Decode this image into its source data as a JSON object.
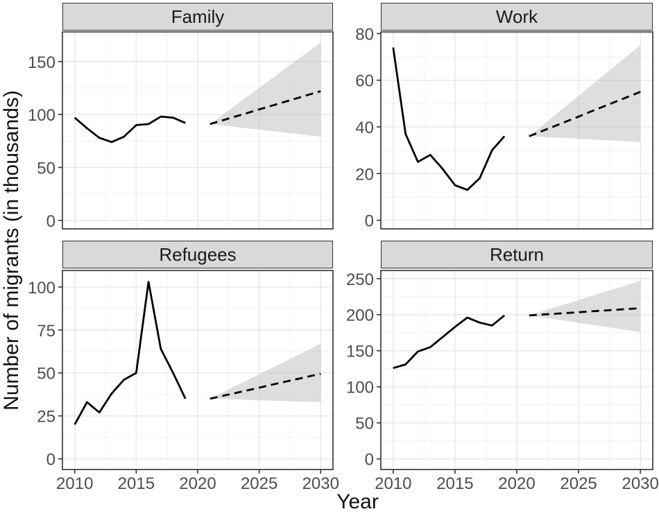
{
  "chart_data": {
    "type": "line",
    "title": "",
    "xlabel": "Year",
    "ylabel": "Number of migrants (in thousands)",
    "x_ticks": [
      2010,
      2015,
      2020,
      2025,
      2030
    ],
    "x_minor": [
      2012.5,
      2017.5,
      2022.5,
      2027.5
    ],
    "x_range": [
      2009,
      2031
    ],
    "years_observed": [
      2010,
      2011,
      2012,
      2013,
      2014,
      2015,
      2016,
      2017,
      2018,
      2019
    ],
    "years_forecast": [
      2021,
      2022,
      2023,
      2024,
      2025,
      2026,
      2027,
      2028,
      2029,
      2030
    ],
    "grid": true,
    "legend": "none",
    "facets": [
      {
        "title": "Family",
        "y_ticks": [
          0,
          50,
          100,
          150
        ],
        "y_minor": [
          25,
          75,
          125,
          175
        ],
        "y_range": [
          -8,
          178
        ],
        "observed": [
          97,
          87,
          78,
          74,
          79,
          90,
          91,
          98,
          97,
          92
        ],
        "forecast": [
          91,
          94.4,
          97.9,
          101.3,
          104.8,
          108.2,
          111.7,
          115.1,
          118.6,
          122
        ],
        "band_upper": [
          91,
          99.6,
          108.1,
          116.7,
          125.2,
          133.8,
          142.3,
          150.9,
          159.4,
          168
        ],
        "band_lower": [
          91,
          89.7,
          88.3,
          87.0,
          85.7,
          84.3,
          83.0,
          81.7,
          80.3,
          79
        ]
      },
      {
        "title": "Work",
        "y_ticks": [
          0,
          20,
          40,
          60,
          80
        ],
        "y_minor": [
          10,
          30,
          50,
          70
        ],
        "y_range": [
          -3.7,
          80.7
        ],
        "observed": [
          74,
          37,
          25,
          28,
          22,
          15,
          13,
          18,
          30,
          36
        ],
        "forecast": [
          36,
          38.1,
          40.2,
          42.3,
          44.4,
          46.6,
          48.7,
          50.8,
          52.9,
          55
        ],
        "band_upper": [
          36,
          40.3,
          44.7,
          49.0,
          53.3,
          57.7,
          62.0,
          66.3,
          70.7,
          75
        ],
        "band_lower": [
          36,
          35.7,
          35.4,
          35.2,
          34.9,
          34.6,
          34.3,
          34.1,
          33.8,
          33.5
        ]
      },
      {
        "title": "Refugees",
        "y_ticks": [
          0,
          25,
          50,
          75,
          100
        ],
        "y_minor": [
          12.5,
          37.5,
          62.5,
          87.5
        ],
        "y_range": [
          -6.2,
          109.6
        ],
        "observed": [
          20,
          33,
          27,
          38,
          46,
          50,
          103,
          64,
          50,
          35
        ],
        "forecast": [
          35,
          36.6,
          38.2,
          39.8,
          41.4,
          43.1,
          44.7,
          46.3,
          47.9,
          49.5
        ],
        "band_upper": [
          35,
          38.6,
          42.1,
          45.7,
          49.2,
          52.8,
          56.3,
          59.9,
          63.4,
          67
        ],
        "band_lower": [
          35,
          34.8,
          34.6,
          34.3,
          34.1,
          33.9,
          33.7,
          33.4,
          33.2,
          33
        ]
      },
      {
        "title": "Return",
        "y_ticks": [
          0,
          50,
          100,
          150,
          200,
          250
        ],
        "y_minor": [
          25,
          75,
          125,
          175,
          225
        ],
        "y_range": [
          -14.7,
          261.3
        ],
        "observed": [
          126,
          131,
          149,
          155,
          169,
          183,
          196,
          189,
          185,
          199
        ],
        "forecast": [
          199,
          200.1,
          201.2,
          202.3,
          203.4,
          204.6,
          205.7,
          206.8,
          207.9,
          209
        ],
        "band_upper": [
          199,
          204.3,
          209.7,
          215.0,
          220.3,
          225.7,
          231.0,
          236.3,
          241.7,
          247
        ],
        "band_lower": [
          199,
          196.4,
          193.9,
          191.3,
          188.8,
          186.2,
          183.7,
          181.1,
          178.6,
          176
        ]
      }
    ],
    "colors": {
      "line": "#000000",
      "band_fill": "#bdbdbd",
      "grid_major": "#e7e7e7",
      "grid_minor": "#f1f1f1",
      "panel_bg": "#ffffff",
      "panel_border": "#2e2e2e",
      "strip_bg": "#d9d9d9",
      "tick_label": "#4d4d4d",
      "axis_title": "#111111"
    }
  }
}
